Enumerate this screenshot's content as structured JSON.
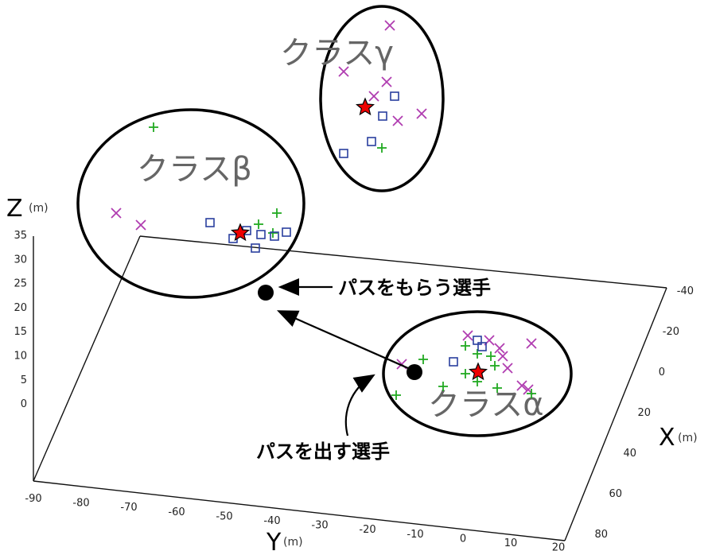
{
  "axes": {
    "z": {
      "letter": "Z",
      "unit": "(m)",
      "ticks": [
        "35",
        "30",
        "25",
        "20",
        "15",
        "10",
        "5",
        "0"
      ]
    },
    "x": {
      "letter": "X",
      "unit": "(m)",
      "ticks": [
        "-40",
        "-20",
        "0",
        "20",
        "40",
        "60",
        "80"
      ]
    },
    "y": {
      "letter": "Y",
      "unit": "(m)",
      "ticks": [
        "-90",
        "-80",
        "-70",
        "-60",
        "-50",
        "-40",
        "-30",
        "-20",
        "-10",
        "0",
        "10",
        "20"
      ]
    }
  },
  "clusters": {
    "alpha": {
      "label": "クラスα"
    },
    "beta": {
      "label": "クラスβ"
    },
    "gamma": {
      "label": "クラスγ"
    }
  },
  "callouts": {
    "receiver": "パスをもらう選手",
    "passer": "パスを出す選手"
  },
  "colors": {
    "x_marker": "#b03cb0",
    "plus_marker": "#22aa22",
    "square_marker": "#2a3f9e",
    "star_fill": "#ee0000",
    "player_dot": "#000000"
  }
}
